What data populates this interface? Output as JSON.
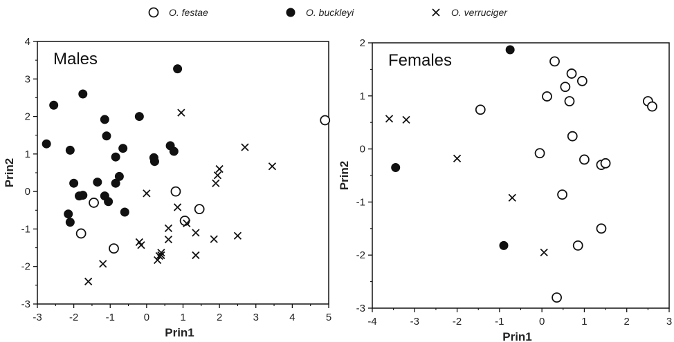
{
  "legend": {
    "placement": "top-center",
    "items": [
      {
        "label": "O. festae",
        "marker": "open-circle"
      },
      {
        "label": "O. buckleyi",
        "marker": "filled-circle"
      },
      {
        "label": "O. verruciger",
        "marker": "x-cross"
      }
    ]
  },
  "chart_data": [
    {
      "type": "scatter",
      "title": "Males",
      "xlabel": "Prin1",
      "ylabel": "Prin2",
      "xlim": [
        -3,
        5
      ],
      "ylim": [
        -3,
        4
      ],
      "xticks": [
        -3,
        -2,
        -1,
        0,
        1,
        2,
        3,
        4,
        5
      ],
      "yticks": [
        -3,
        -2,
        -1,
        0,
        1,
        2,
        3,
        4
      ],
      "grid": false,
      "series": [
        {
          "name": "O. festae",
          "marker": "open-circle",
          "points": [
            [
              4.9,
              1.9
            ],
            [
              -1.45,
              -0.3
            ],
            [
              0.8,
              0.0
            ],
            [
              1.45,
              -0.47
            ],
            [
              1.05,
              -0.78
            ],
            [
              -1.8,
              -1.12
            ],
            [
              -0.9,
              -1.52
            ]
          ]
        },
        {
          "name": "O. buckleyi",
          "marker": "filled-circle",
          "points": [
            [
              0.85,
              3.27
            ],
            [
              -1.75,
              2.6
            ],
            [
              -2.55,
              2.3
            ],
            [
              -1.15,
              1.92
            ],
            [
              -0.2,
              2.0
            ],
            [
              -2.75,
              1.27
            ],
            [
              -1.1,
              1.48
            ],
            [
              -2.1,
              1.1
            ],
            [
              -0.65,
              1.15
            ],
            [
              -0.85,
              0.92
            ],
            [
              0.65,
              1.22
            ],
            [
              0.75,
              1.07
            ],
            [
              0.2,
              0.9
            ],
            [
              0.22,
              0.8
            ],
            [
              -0.75,
              0.4
            ],
            [
              -1.35,
              0.25
            ],
            [
              -0.85,
              0.22
            ],
            [
              -2.0,
              0.22
            ],
            [
              -1.85,
              -0.12
            ],
            [
              -1.75,
              -0.1
            ],
            [
              -1.15,
              -0.12
            ],
            [
              -1.05,
              -0.27
            ],
            [
              -2.15,
              -0.6
            ],
            [
              -2.1,
              -0.82
            ],
            [
              -0.6,
              -0.55
            ]
          ]
        },
        {
          "name": "O. verruciger",
          "marker": "x-cross",
          "points": [
            [
              0.95,
              2.1
            ],
            [
              2.7,
              1.18
            ],
            [
              3.45,
              0.67
            ],
            [
              2.0,
              0.6
            ],
            [
              1.95,
              0.43
            ],
            [
              1.9,
              0.22
            ],
            [
              0.0,
              -0.05
            ],
            [
              0.85,
              -0.42
            ],
            [
              1.1,
              -0.85
            ],
            [
              0.6,
              -0.98
            ],
            [
              1.35,
              -1.1
            ],
            [
              0.6,
              -1.28
            ],
            [
              1.85,
              -1.27
            ],
            [
              2.5,
              -1.18
            ],
            [
              -0.2,
              -1.35
            ],
            [
              -0.15,
              -1.43
            ],
            [
              0.4,
              -1.63
            ],
            [
              0.4,
              -1.7
            ],
            [
              0.35,
              -1.72
            ],
            [
              0.3,
              -1.83
            ],
            [
              1.35,
              -1.7
            ],
            [
              -1.2,
              -1.93
            ],
            [
              -1.6,
              -2.4
            ]
          ]
        }
      ]
    },
    {
      "type": "scatter",
      "title": "Females",
      "xlabel": "Prin1",
      "ylabel": "Prin2",
      "xlim": [
        -4,
        3
      ],
      "ylim": [
        -3,
        2
      ],
      "xticks": [
        -4,
        -3,
        -2,
        -1,
        0,
        1,
        2,
        3
      ],
      "yticks": [
        -3,
        -2,
        -1,
        0,
        1,
        2
      ],
      "grid": false,
      "series": [
        {
          "name": "O. festae",
          "marker": "open-circle",
          "points": [
            [
              0.3,
              1.65
            ],
            [
              0.7,
              1.42
            ],
            [
              0.95,
              1.28
            ],
            [
              0.55,
              1.17
            ],
            [
              0.12,
              0.99
            ],
            [
              0.65,
              0.9
            ],
            [
              2.5,
              0.9
            ],
            [
              2.6,
              0.8
            ],
            [
              -1.45,
              0.74
            ],
            [
              0.72,
              0.24
            ],
            [
              -0.05,
              -0.08
            ],
            [
              1.0,
              -0.2
            ],
            [
              1.4,
              -0.3
            ],
            [
              1.5,
              -0.27
            ],
            [
              0.48,
              -0.86
            ],
            [
              1.4,
              -1.5
            ],
            [
              0.85,
              -1.82
            ],
            [
              0.35,
              -2.8
            ]
          ]
        },
        {
          "name": "O. buckleyi",
          "marker": "filled-circle",
          "points": [
            [
              -0.75,
              1.87
            ],
            [
              -3.45,
              -0.35
            ],
            [
              -0.9,
              -1.82
            ]
          ]
        },
        {
          "name": "O. verruciger",
          "marker": "x-cross",
          "points": [
            [
              -3.6,
              0.57
            ],
            [
              -3.2,
              0.55
            ],
            [
              -2.0,
              -0.18
            ],
            [
              -0.7,
              -0.92
            ],
            [
              0.05,
              -1.95
            ]
          ]
        }
      ]
    }
  ]
}
